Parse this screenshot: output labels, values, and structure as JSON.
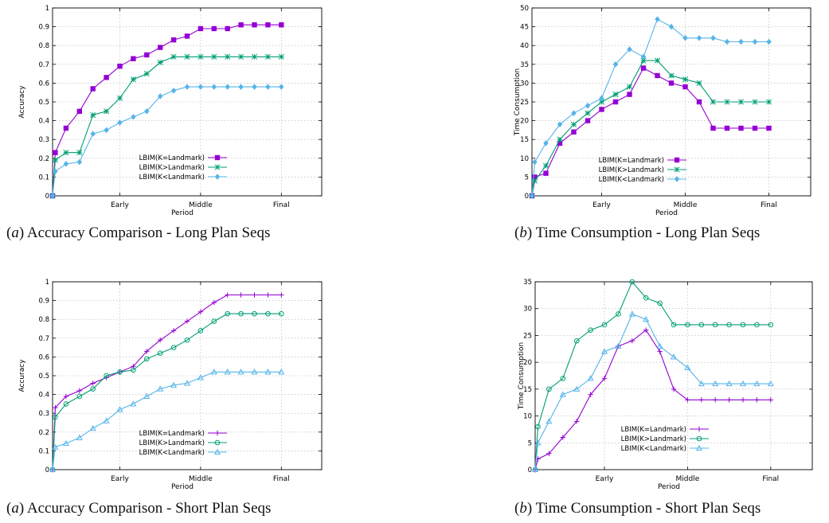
{
  "chart_data": [
    {
      "type": "line",
      "caption_letter": "a",
      "caption": "Accuracy Comparison - Long Plan Seqs",
      "xlabel": "Period",
      "ylabel": "Accuracy",
      "ylim": [
        0,
        1
      ],
      "yticks": [
        "0",
        "0.1",
        "0.2",
        "0.3",
        "0.4",
        "0.5",
        "0.6",
        "0.7",
        "0.8",
        "0.9",
        "1"
      ],
      "xlim": [
        0,
        20
      ],
      "xticks": [
        {
          "x": 5,
          "label": "Early"
        },
        {
          "x": 11,
          "label": "Middle"
        },
        {
          "x": 17,
          "label": "Final"
        }
      ],
      "grid": true,
      "legend_position": "bottom-left",
      "series": [
        {
          "name": "LBIM(K=Landmark)",
          "color": "#9400d3",
          "marker": "square-filled",
          "x": [
            0,
            0.2,
            1,
            2,
            3,
            4,
            5,
            6,
            7,
            8,
            9,
            10,
            11,
            12,
            13,
            14,
            15,
            16,
            17
          ],
          "y": [
            0,
            0.23,
            0.36,
            0.45,
            0.57,
            0.63,
            0.69,
            0.73,
            0.75,
            0.79,
            0.83,
            0.85,
            0.89,
            0.89,
            0.89,
            0.91,
            0.91,
            0.91,
            0.91
          ]
        },
        {
          "name": "LBIM(K>Landmark)",
          "color": "#009e73",
          "marker": "star",
          "x": [
            0,
            0.2,
            1,
            2,
            3,
            4,
            5,
            6,
            7,
            8,
            9,
            10,
            11,
            12,
            13,
            14,
            15,
            16,
            17
          ],
          "y": [
            0,
            0.19,
            0.23,
            0.23,
            0.43,
            0.45,
            0.52,
            0.62,
            0.65,
            0.71,
            0.74,
            0.74,
            0.74,
            0.74,
            0.74,
            0.74,
            0.74,
            0.74,
            0.74
          ]
        },
        {
          "name": "LBIM(K<Landmark)",
          "color": "#56b4e9",
          "marker": "diamond-filled",
          "x": [
            0,
            0.2,
            1,
            2,
            3,
            4,
            5,
            6,
            7,
            8,
            9,
            10,
            11,
            12,
            13,
            14,
            15,
            16,
            17
          ],
          "y": [
            0,
            0.13,
            0.17,
            0.18,
            0.33,
            0.35,
            0.39,
            0.42,
            0.45,
            0.53,
            0.56,
            0.58,
            0.58,
            0.58,
            0.58,
            0.58,
            0.58,
            0.58,
            0.58
          ]
        }
      ]
    },
    {
      "type": "line",
      "caption_letter": "b",
      "caption": "Time Consumption - Long Plan Seqs",
      "xlabel": "Period",
      "ylabel": "Time Consumption",
      "ylim": [
        0,
        50
      ],
      "yticks": [
        "0",
        "5",
        "10",
        "15",
        "20",
        "25",
        "30",
        "35",
        "40",
        "45",
        "50"
      ],
      "xlim": [
        0,
        20
      ],
      "xticks": [
        {
          "x": 5,
          "label": "Early"
        },
        {
          "x": 11,
          "label": "Middle"
        },
        {
          "x": 17,
          "label": "Final"
        }
      ],
      "grid": true,
      "legend_position": "bottom-left",
      "series": [
        {
          "name": "LBIM(K=Landmark)",
          "color": "#9400d3",
          "marker": "square-filled",
          "x": [
            0,
            0.2,
            1,
            2,
            3,
            4,
            5,
            6,
            7,
            8,
            9,
            10,
            11,
            12,
            13,
            14,
            15,
            16,
            17
          ],
          "y": [
            0,
            5,
            6,
            14,
            17,
            20,
            23,
            25,
            27,
            34,
            32,
            30,
            29,
            25,
            18,
            18,
            18,
            18,
            18
          ]
        },
        {
          "name": "LBIM(K>Landmark)",
          "color": "#009e73",
          "marker": "star",
          "x": [
            0,
            0.2,
            1,
            2,
            3,
            4,
            5,
            6,
            7,
            8,
            9,
            10,
            11,
            12,
            13,
            14,
            15,
            16,
            17
          ],
          "y": [
            0,
            4,
            8,
            15,
            19,
            22,
            25,
            27,
            29,
            36,
            36,
            32,
            31,
            30,
            25,
            25,
            25,
            25,
            25
          ]
        },
        {
          "name": "LBIM(K<Landmark)",
          "color": "#56b4e9",
          "marker": "diamond-filled",
          "x": [
            0,
            0.2,
            1,
            2,
            3,
            4,
            5,
            6,
            7,
            8,
            9,
            10,
            11,
            12,
            13,
            14,
            15,
            16,
            17
          ],
          "y": [
            0,
            9,
            14,
            19,
            22,
            24,
            26,
            35,
            39,
            37,
            47,
            45,
            42,
            42,
            42,
            41,
            41,
            41,
            41
          ]
        }
      ]
    },
    {
      "type": "line",
      "caption_letter": "a",
      "caption": "Accuracy Comparison - Short Plan Seqs",
      "xlabel": "Period",
      "ylabel": "Accuracy",
      "ylim": [
        0,
        1
      ],
      "yticks": [
        "0",
        "0.1",
        "0.2",
        "0.3",
        "0.4",
        "0.5",
        "0.6",
        "0.7",
        "0.8",
        "0.9",
        "1"
      ],
      "xlim": [
        0,
        20
      ],
      "xticks": [
        {
          "x": 5,
          "label": "Early"
        },
        {
          "x": 11,
          "label": "Middle"
        },
        {
          "x": 17,
          "label": "Final"
        }
      ],
      "grid": true,
      "legend_position": "bottom-left",
      "series": [
        {
          "name": "LBIM(K=Landmark)",
          "color": "#9400d3",
          "marker": "plus",
          "x": [
            0,
            0.2,
            1,
            2,
            3,
            4,
            5,
            6,
            7,
            8,
            9,
            10,
            11,
            12,
            13,
            14,
            15,
            16,
            17
          ],
          "y": [
            0,
            0.33,
            0.39,
            0.42,
            0.46,
            0.49,
            0.52,
            0.55,
            0.63,
            0.69,
            0.74,
            0.79,
            0.84,
            0.89,
            0.93,
            0.93,
            0.93,
            0.93,
            0.93
          ]
        },
        {
          "name": "LBIM(K>Landmark)",
          "color": "#009e73",
          "marker": "circle-open",
          "x": [
            0,
            0.2,
            1,
            2,
            3,
            4,
            5,
            6,
            7,
            8,
            9,
            10,
            11,
            12,
            13,
            14,
            15,
            16,
            17
          ],
          "y": [
            0,
            0.28,
            0.35,
            0.39,
            0.43,
            0.5,
            0.52,
            0.53,
            0.59,
            0.62,
            0.65,
            0.69,
            0.74,
            0.79,
            0.83,
            0.83,
            0.83,
            0.83,
            0.83
          ]
        },
        {
          "name": "LBIM(K<Landmark)",
          "color": "#56b4e9",
          "marker": "triangle-open",
          "x": [
            0,
            0.2,
            1,
            2,
            3,
            4,
            5,
            6,
            7,
            8,
            9,
            10,
            11,
            12,
            13,
            14,
            15,
            16,
            17
          ],
          "y": [
            0,
            0.12,
            0.14,
            0.17,
            0.22,
            0.26,
            0.32,
            0.35,
            0.39,
            0.43,
            0.45,
            0.46,
            0.49,
            0.52,
            0.52,
            0.52,
            0.52,
            0.52,
            0.52
          ]
        }
      ]
    },
    {
      "type": "line",
      "caption_letter": "b",
      "caption": "Time Consumption - Short Plan Seqs",
      "xlabel": "Period",
      "ylabel": "Time Consumption",
      "ylim": [
        0,
        35
      ],
      "yticks": [
        "0",
        "5",
        "10",
        "15",
        "20",
        "25",
        "30",
        "35"
      ],
      "xlim": [
        0,
        20
      ],
      "xticks": [
        {
          "x": 5,
          "label": "Early"
        },
        {
          "x": 11,
          "label": "Middle"
        },
        {
          "x": 17,
          "label": "Final"
        }
      ],
      "grid": true,
      "legend_position": "bottom-left",
      "series": [
        {
          "name": "LBIM(K=Landmark)",
          "color": "#9400d3",
          "marker": "plus",
          "x": [
            0,
            0.2,
            1,
            2,
            3,
            4,
            5,
            6,
            7,
            8,
            9,
            10,
            11,
            12,
            13,
            14,
            15,
            16,
            17
          ],
          "y": [
            0,
            2,
            3,
            6,
            9,
            14,
            17,
            23,
            24,
            26,
            22,
            15,
            13,
            13,
            13,
            13,
            13,
            13,
            13
          ]
        },
        {
          "name": "LBIM(K>Landmark)",
          "color": "#009e73",
          "marker": "circle-open",
          "x": [
            0,
            0.2,
            1,
            2,
            3,
            4,
            5,
            6,
            7,
            8,
            9,
            10,
            11,
            12,
            13,
            14,
            15,
            16,
            17
          ],
          "y": [
            0,
            8,
            15,
            17,
            24,
            26,
            27,
            29,
            35,
            32,
            31,
            27,
            27,
            27,
            27,
            27,
            27,
            27,
            27
          ]
        },
        {
          "name": "LBIM(K<Landmark)",
          "color": "#56b4e9",
          "marker": "triangle-open",
          "x": [
            0,
            0.2,
            1,
            2,
            3,
            4,
            5,
            6,
            7,
            8,
            9,
            10,
            11,
            12,
            13,
            14,
            15,
            16,
            17
          ],
          "y": [
            0,
            5,
            9,
            14,
            15,
            17,
            22,
            23,
            29,
            28,
            23,
            21,
            19,
            16,
            16,
            16,
            16,
            16,
            16
          ]
        }
      ]
    }
  ]
}
